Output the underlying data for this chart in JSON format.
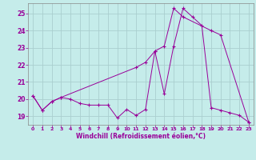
{
  "xlabel": "Windchill (Refroidissement éolien,°C)",
  "background_color": "#c5ecea",
  "line_color": "#990099",
  "grid_color": "#aacfcf",
  "xlim": [
    -0.5,
    23.5
  ],
  "ylim": [
    18.5,
    25.6
  ],
  "x_ticks": [
    0,
    1,
    2,
    3,
    4,
    5,
    6,
    7,
    8,
    9,
    10,
    11,
    12,
    13,
    14,
    15,
    16,
    17,
    18,
    19,
    20,
    21,
    22,
    23
  ],
  "y_ticks": [
    19,
    20,
    21,
    22,
    23,
    24,
    25
  ],
  "line1_x": [
    0,
    1,
    2,
    3,
    4,
    5,
    6,
    7,
    8,
    9,
    10,
    11,
    12,
    13,
    14,
    15,
    16,
    17,
    18,
    19,
    20,
    21,
    22,
    23
  ],
  "line1_y": [
    20.2,
    19.35,
    19.85,
    20.1,
    20.0,
    19.75,
    19.65,
    19.65,
    19.65,
    18.9,
    19.4,
    19.05,
    19.4,
    22.8,
    20.3,
    23.1,
    25.3,
    24.8,
    24.3,
    19.5,
    19.35,
    19.2,
    19.05,
    18.65
  ],
  "line2_x": [
    0,
    1,
    2,
    3,
    11,
    12,
    13,
    14,
    15,
    16,
    19,
    20,
    23
  ],
  "line2_y": [
    20.2,
    19.35,
    19.85,
    20.1,
    21.85,
    22.15,
    22.8,
    23.1,
    25.3,
    24.8,
    24.0,
    23.75,
    18.65
  ]
}
